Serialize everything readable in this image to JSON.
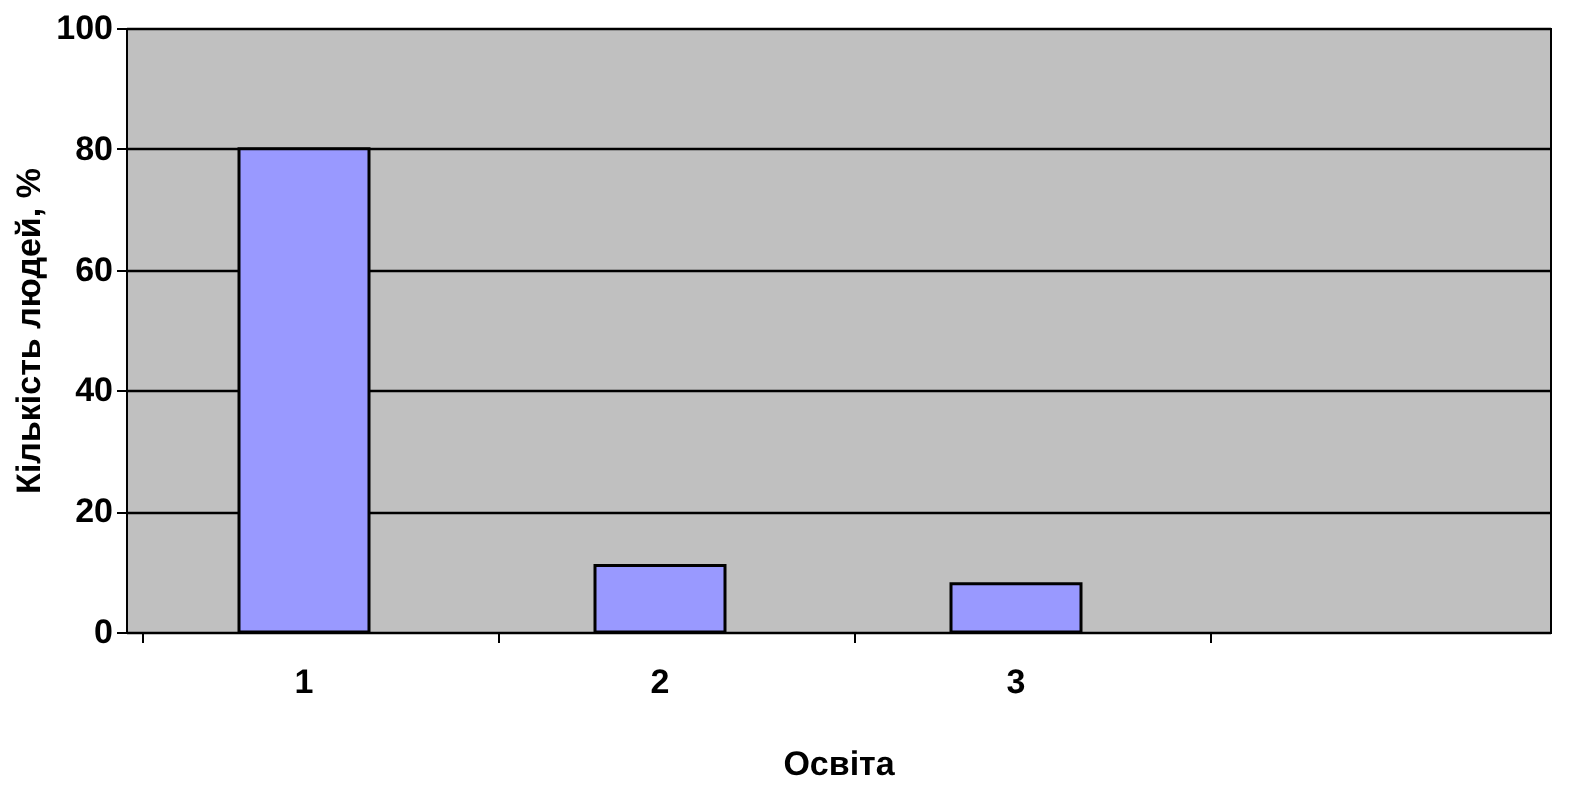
{
  "chart_data": {
    "type": "bar",
    "xlabel": "Освіта",
    "ylabel": "Кількість людей, %",
    "categories": [
      "1",
      "2",
      "3",
      null
    ],
    "values": [
      80,
      11,
      8,
      null
    ],
    "color": "#9999ff",
    "ylim": [
      0,
      100
    ],
    "yticks": [
      0,
      20,
      40,
      60,
      80,
      100
    ],
    "grid": "y"
  }
}
